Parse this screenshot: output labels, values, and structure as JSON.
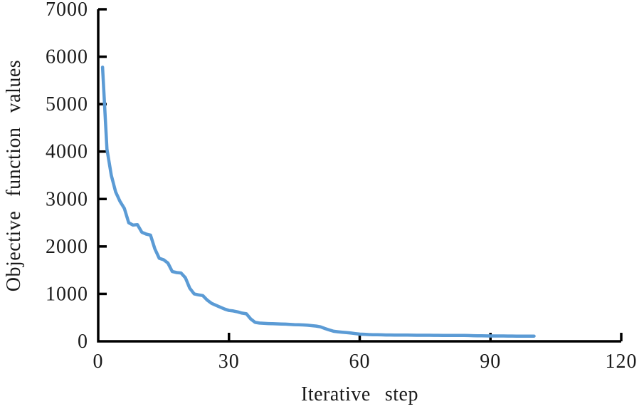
{
  "figure": {
    "background": "#ffffff",
    "text_color": "#1a1a1a",
    "axis_color": "#000000"
  },
  "chart_data": {
    "type": "line",
    "title": "",
    "xlabel": "Iterative step",
    "ylabel": "Objective function values",
    "xlim": [
      0,
      120
    ],
    "ylim": [
      0,
      7000
    ],
    "x_ticks": [
      0,
      30,
      60,
      90,
      120
    ],
    "y_ticks": [
      0,
      1000,
      2000,
      3000,
      4000,
      5000,
      6000,
      7000
    ],
    "grid": false,
    "legend": null,
    "line_color": "#5b9bd5",
    "series": [
      {
        "name": "objective-function-value",
        "x": [
          1,
          2,
          3,
          4,
          5,
          6,
          7,
          8,
          9,
          10,
          11,
          12,
          13,
          14,
          15,
          16,
          17,
          18,
          19,
          20,
          21,
          22,
          23,
          24,
          25,
          26,
          27,
          28,
          29,
          30,
          31,
          32,
          33,
          34,
          35,
          36,
          37,
          38,
          39,
          40,
          41,
          42,
          43,
          44,
          45,
          46,
          47,
          48,
          49,
          50,
          51,
          52,
          53,
          54,
          55,
          56,
          57,
          58,
          59,
          60,
          61,
          62,
          63,
          64,
          65,
          66,
          67,
          68,
          69,
          70,
          71,
          72,
          73,
          74,
          75,
          76,
          77,
          78,
          79,
          80,
          81,
          82,
          83,
          84,
          85,
          86,
          87,
          88,
          89,
          90,
          91,
          92,
          93,
          94,
          95,
          96,
          97,
          98,
          99,
          100
        ],
        "y": [
          5780,
          4050,
          3500,
          3150,
          2950,
          2800,
          2500,
          2450,
          2460,
          2300,
          2260,
          2240,
          1950,
          1750,
          1720,
          1650,
          1470,
          1450,
          1440,
          1340,
          1120,
          1000,
          980,
          965,
          870,
          800,
          760,
          720,
          680,
          650,
          640,
          620,
          595,
          580,
          470,
          400,
          385,
          378,
          374,
          371,
          368,
          365,
          362,
          358,
          352,
          348,
          345,
          340,
          330,
          322,
          305,
          270,
          240,
          212,
          202,
          193,
          184,
          174,
          162,
          152,
          148,
          143,
          140,
          138,
          136,
          134,
          133,
          132,
          131,
          130,
          130,
          129,
          128,
          128,
          127,
          127,
          126,
          126,
          125,
          125,
          124,
          124,
          123,
          123,
          122,
          118,
          116,
          115,
          114,
          113,
          113,
          112,
          112,
          111,
          111,
          110,
          110,
          110,
          110,
          110
        ]
      }
    ]
  }
}
